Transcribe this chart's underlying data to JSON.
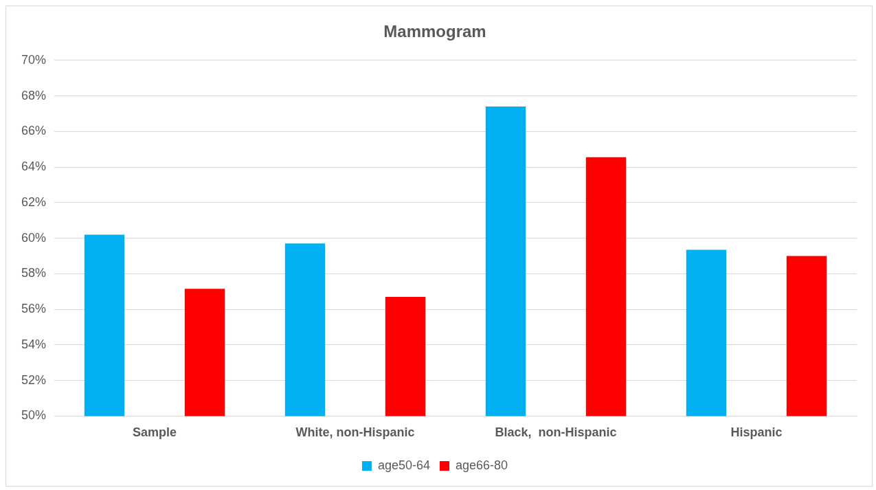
{
  "chart_data": {
    "type": "bar",
    "title": "Mammogram",
    "categories": [
      "Sample",
      "White, non-Hispanic",
      "Black,  non-Hispanic",
      "Hispanic"
    ],
    "series": [
      {
        "name": "age50-64",
        "color": "#00b0f0",
        "values": [
          60.2,
          59.7,
          67.4,
          59.35
        ]
      },
      {
        "name": "age66-80",
        "color": "#ff0000",
        "values": [
          57.15,
          56.7,
          64.55,
          59.0
        ]
      }
    ],
    "ylim": [
      50,
      70
    ],
    "yticks": [
      {
        "value": 50,
        "label": "50%"
      },
      {
        "value": 52,
        "label": "52%"
      },
      {
        "value": 54,
        "label": "54%"
      },
      {
        "value": 56,
        "label": "56%"
      },
      {
        "value": 58,
        "label": "58%"
      },
      {
        "value": 60,
        "label": "60%"
      },
      {
        "value": 62,
        "label": "62%"
      },
      {
        "value": 64,
        "label": "64%"
      },
      {
        "value": 66,
        "label": "66%"
      },
      {
        "value": 68,
        "label": "68%"
      },
      {
        "value": 70,
        "label": "70%"
      }
    ],
    "grid": "y",
    "legend": "bottom"
  }
}
